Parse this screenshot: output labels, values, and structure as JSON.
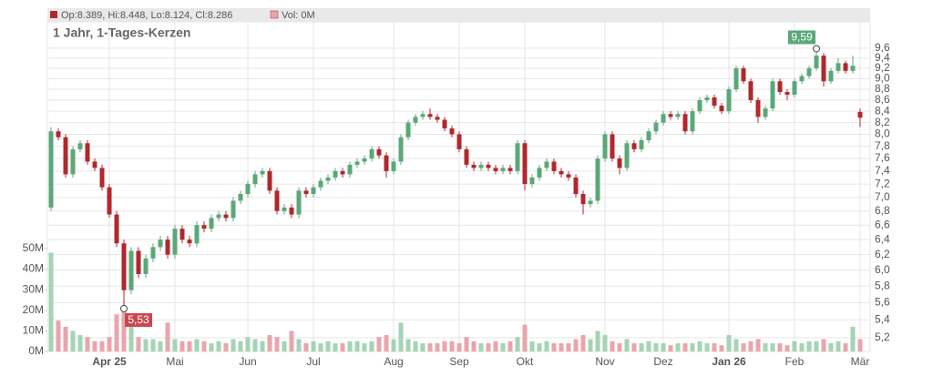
{
  "chart_data": {
    "type": "candlestick",
    "title": "1 Jahr, 1-Tages-Kerzen",
    "ohlc_text": "Op:8.389, Hi:8.448, Lo:8.124, Cl:8.286",
    "volume_text": "Vol: 0M",
    "max_label": "9,59",
    "min_label": "5,53",
    "up_color": "#5aa878",
    "down_color": "#b0282c",
    "volume_up_color": "#a3d4b4",
    "volume_down_color": "#eaa4ac",
    "log_scale": true,
    "grid": true,
    "categories": [
      null,
      null,
      null,
      null,
      null,
      null,
      null,
      null,
      "Apr 25",
      null,
      null,
      null,
      null,
      null,
      null,
      null,
      null,
      "Mai",
      null,
      null,
      null,
      null,
      null,
      null,
      null,
      null,
      null,
      "Jun",
      null,
      null,
      null,
      null,
      null,
      null,
      null,
      null,
      "Jul",
      null,
      null,
      null,
      null,
      null,
      null,
      null,
      null,
      null,
      null,
      "Aug",
      null,
      null,
      null,
      null,
      null,
      null,
      null,
      null,
      "Sep",
      null,
      null,
      null,
      null,
      null,
      null,
      null,
      null,
      "Okt",
      null,
      null,
      null,
      null,
      null,
      null,
      null,
      null,
      null,
      null,
      "Nov",
      null,
      null,
      null,
      null,
      null,
      null,
      null,
      "Dez",
      null,
      null,
      null,
      null,
      null,
      null,
      null,
      null,
      "Jan 26",
      null,
      null,
      null,
      null,
      null,
      null,
      null,
      null,
      "Feb",
      null,
      null,
      null,
      null,
      null,
      null,
      null,
      null,
      "Mär"
    ],
    "open": [
      6.85,
      8.05,
      7.95,
      7.35,
      7.75,
      7.85,
      7.55,
      7.45,
      7.15,
      6.75,
      6.35,
      5.75,
      6.25,
      5.95,
      6.15,
      6.3,
      6.4,
      6.2,
      6.55,
      6.4,
      6.35,
      6.6,
      6.55,
      6.7,
      6.75,
      6.7,
      6.95,
      7.05,
      7.2,
      7.35,
      7.4,
      7.1,
      6.8,
      6.85,
      6.75,
      7.1,
      7.05,
      7.15,
      7.25,
      7.3,
      7.4,
      7.35,
      7.5,
      7.55,
      7.6,
      7.75,
      7.65,
      7.4,
      7.55,
      7.95,
      8.2,
      8.3,
      8.35,
      8.3,
      8.25,
      8.1,
      8.0,
      7.75,
      7.5,
      7.45,
      7.5,
      7.45,
      7.4,
      7.45,
      7.4,
      7.85,
      7.2,
      7.3,
      7.45,
      7.55,
      7.4,
      7.35,
      7.3,
      7.05,
      6.9,
      6.95,
      7.6,
      8.0,
      7.6,
      7.45,
      7.85,
      7.75,
      7.9,
      8.05,
      8.2,
      8.35,
      8.3,
      8.35,
      8.05,
      8.4,
      8.6,
      8.65,
      8.5,
      8.4,
      8.8,
      9.2,
      8.95,
      8.6,
      8.3,
      8.45,
      8.95,
      8.75,
      8.7,
      8.95,
      9.05,
      9.2,
      9.45,
      8.95,
      9.15,
      9.3,
      9.15,
      8.389
    ],
    "high": [
      8.12,
      8.1,
      8.0,
      7.8,
      7.9,
      7.9,
      7.6,
      7.5,
      7.2,
      6.8,
      6.4,
      6.3,
      6.3,
      6.2,
      6.35,
      6.45,
      6.45,
      6.6,
      6.6,
      6.45,
      6.65,
      6.65,
      6.75,
      6.8,
      6.8,
      7.0,
      7.1,
      7.25,
      7.4,
      7.45,
      7.45,
      7.15,
      6.9,
      6.9,
      7.15,
      7.15,
      7.2,
      7.3,
      7.35,
      7.45,
      7.45,
      7.55,
      7.6,
      7.65,
      7.8,
      7.8,
      7.7,
      7.6,
      8.0,
      8.25,
      8.35,
      8.4,
      8.45,
      8.35,
      8.3,
      8.15,
      8.05,
      7.8,
      7.55,
      7.55,
      7.55,
      7.5,
      7.5,
      7.5,
      7.9,
      7.9,
      7.35,
      7.5,
      7.6,
      7.6,
      7.45,
      7.4,
      7.35,
      7.1,
      7.0,
      7.65,
      8.05,
      8.05,
      7.65,
      7.9,
      7.9,
      7.95,
      8.1,
      8.25,
      8.4,
      8.4,
      8.4,
      8.4,
      8.45,
      8.65,
      8.7,
      8.7,
      8.55,
      8.85,
      9.25,
      9.25,
      9.0,
      8.65,
      8.5,
      9.0,
      9.0,
      8.8,
      9.0,
      9.1,
      9.25,
      9.59,
      9.5,
      9.2,
      9.4,
      9.35,
      9.45,
      8.448
    ],
    "low": [
      6.8,
      7.9,
      7.3,
      7.3,
      7.7,
      7.5,
      7.4,
      7.1,
      6.7,
      6.3,
      5.53,
      5.7,
      5.9,
      5.9,
      6.1,
      6.25,
      6.15,
      6.15,
      6.35,
      6.3,
      6.3,
      6.5,
      6.5,
      6.65,
      6.65,
      6.65,
      6.9,
      7.0,
      7.15,
      7.3,
      7.05,
      6.75,
      6.75,
      6.7,
      6.7,
      7.0,
      7.0,
      7.1,
      7.2,
      7.25,
      7.3,
      7.3,
      7.45,
      7.5,
      7.55,
      7.6,
      7.3,
      7.35,
      7.5,
      7.9,
      8.15,
      8.25,
      8.25,
      8.2,
      8.05,
      7.95,
      7.7,
      7.45,
      7.4,
      7.4,
      7.4,
      7.35,
      7.35,
      7.35,
      7.35,
      7.1,
      7.15,
      7.25,
      7.4,
      7.35,
      7.3,
      7.25,
      7.0,
      6.75,
      6.85,
      6.9,
      7.55,
      7.55,
      7.35,
      7.4,
      7.7,
      7.7,
      7.85,
      8.0,
      8.15,
      8.25,
      8.25,
      8.0,
      8.0,
      8.35,
      8.55,
      8.45,
      8.35,
      8.35,
      8.75,
      8.9,
      8.55,
      8.2,
      8.25,
      8.4,
      8.7,
      8.6,
      8.65,
      8.9,
      9.0,
      9.15,
      8.85,
      8.9,
      9.1,
      9.1,
      9.1,
      8.124
    ],
    "close": [
      8.05,
      7.95,
      7.35,
      7.75,
      7.85,
      7.55,
      7.45,
      7.15,
      6.75,
      6.35,
      5.75,
      6.25,
      5.95,
      6.15,
      6.3,
      6.4,
      6.2,
      6.55,
      6.4,
      6.35,
      6.6,
      6.55,
      6.7,
      6.75,
      6.7,
      6.95,
      7.05,
      7.2,
      7.35,
      7.4,
      7.1,
      6.8,
      6.85,
      6.75,
      7.1,
      7.05,
      7.15,
      7.25,
      7.3,
      7.4,
      7.35,
      7.5,
      7.55,
      7.6,
      7.75,
      7.65,
      7.4,
      7.55,
      7.95,
      8.2,
      8.3,
      8.35,
      8.3,
      8.25,
      8.1,
      8.0,
      7.75,
      7.5,
      7.45,
      7.5,
      7.45,
      7.4,
      7.45,
      7.4,
      7.85,
      7.2,
      7.3,
      7.45,
      7.55,
      7.4,
      7.35,
      7.3,
      7.05,
      6.9,
      6.95,
      7.6,
      8.0,
      7.6,
      7.45,
      7.85,
      7.75,
      7.9,
      8.05,
      8.2,
      8.35,
      8.3,
      8.35,
      8.05,
      8.4,
      8.6,
      8.65,
      8.5,
      8.4,
      8.8,
      9.2,
      8.95,
      8.6,
      8.3,
      8.45,
      8.95,
      8.75,
      8.7,
      8.95,
      9.05,
      9.2,
      9.45,
      8.95,
      9.15,
      9.3,
      9.15,
      9.25,
      8.286
    ],
    "volume": [
      48,
      15,
      12,
      10,
      8,
      7,
      5,
      5,
      7,
      18,
      22,
      12,
      7,
      6,
      6,
      5,
      14,
      6,
      5,
      5,
      6,
      5,
      4,
      5,
      4,
      6,
      5,
      7,
      6,
      5,
      8,
      7,
      5,
      10,
      6,
      4,
      5,
      4,
      5,
      4,
      4,
      5,
      5,
      4,
      5,
      7,
      8,
      6,
      14,
      6,
      5,
      4,
      4,
      4,
      5,
      5,
      4,
      7,
      5,
      4,
      4,
      5,
      4,
      5,
      7,
      13,
      5,
      4,
      5,
      4,
      4,
      4,
      6,
      8,
      6,
      10,
      8,
      5,
      4,
      6,
      4,
      4,
      5,
      4,
      4,
      3,
      4,
      4,
      4,
      5,
      4,
      4,
      3,
      8,
      6,
      4,
      5,
      6,
      4,
      4,
      4,
      3,
      5,
      4,
      5,
      5,
      6,
      4,
      5,
      4,
      12,
      6
    ],
    "ylim": [
      5.05,
      10.19
    ],
    "yticks": [
      {
        "value": 5.2,
        "label": "5,2"
      },
      {
        "value": 5.4,
        "label": "5,4"
      },
      {
        "value": 5.6,
        "label": "5,6"
      },
      {
        "value": 5.8,
        "label": "5,8"
      },
      {
        "value": 6.0,
        "label": "6,0"
      },
      {
        "value": 6.2,
        "label": "6,2"
      },
      {
        "value": 6.4,
        "label": "6,4"
      },
      {
        "value": 6.6,
        "label": "6,6"
      },
      {
        "value": 6.8,
        "label": "6,8"
      },
      {
        "value": 7.0,
        "label": "7,0"
      },
      {
        "value": 7.2,
        "label": "7,2"
      },
      {
        "value": 7.4,
        "label": "7,4"
      },
      {
        "value": 7.6,
        "label": "7,6"
      },
      {
        "value": 7.8,
        "label": "7,8"
      },
      {
        "value": 8.0,
        "label": "8,0"
      },
      {
        "value": 8.2,
        "label": "8,2"
      },
      {
        "value": 8.4,
        "label": "8,4"
      },
      {
        "value": 8.6,
        "label": "8,6"
      },
      {
        "value": 8.8,
        "label": "8,8"
      },
      {
        "value": 9.0,
        "label": "9,0"
      },
      {
        "value": 9.2,
        "label": "9,2"
      },
      {
        "value": 9.4,
        "label": "9,4"
      },
      {
        "value": 9.6,
        "label": "9,6"
      }
    ],
    "y2lim": [
      0,
      161
    ],
    "y2ticks": [
      {
        "value": 0,
        "label": "0M"
      },
      {
        "value": 10,
        "label": "10M"
      },
      {
        "value": 20,
        "label": "20M"
      },
      {
        "value": 30,
        "label": "30M"
      },
      {
        "value": 40,
        "label": "40M"
      },
      {
        "value": 50,
        "label": "50M"
      }
    ]
  }
}
